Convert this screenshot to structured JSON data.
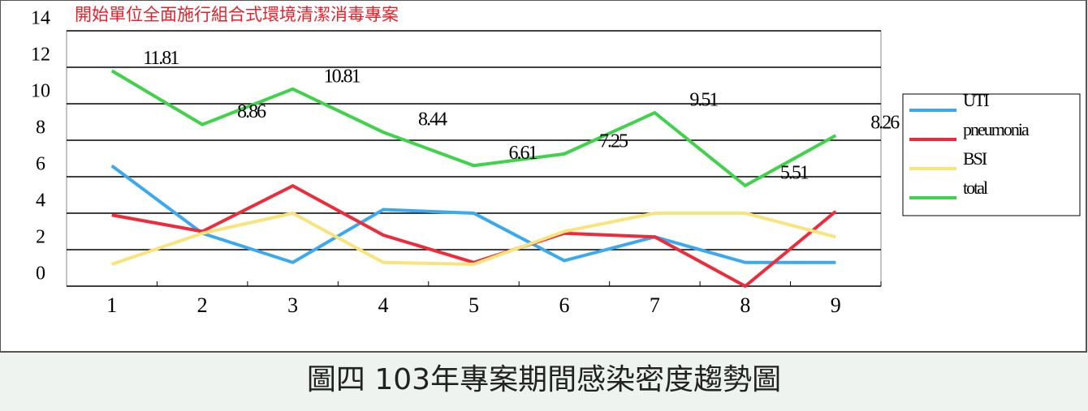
{
  "chart_data": {
    "type": "line",
    "annotation": "開始單位全面施行組合式環境清潔消毒專案",
    "caption": "圖四 103年專案期間感染密度趨勢圖",
    "categories": [
      "1",
      "2",
      "3",
      "4",
      "5",
      "6",
      "7",
      "8",
      "9"
    ],
    "ylim": [
      0,
      14
    ],
    "yticks": [
      0,
      2,
      4,
      6,
      8,
      10,
      12,
      14
    ],
    "grid": true,
    "legend": "right",
    "series": [
      {
        "name": "UTI",
        "color": "#3aa9f0",
        "values": [
          6.6,
          2.9,
          1.3,
          4.2,
          4.0,
          1.4,
          2.7,
          1.3,
          1.3
        ]
      },
      {
        "name": "pneumonia",
        "color": "#ee2b3a",
        "values": [
          3.9,
          3.0,
          5.5,
          2.8,
          1.3,
          2.9,
          2.7,
          0,
          4.1
        ]
      },
      {
        "name": "BSI",
        "color": "#f8e47a",
        "values": [
          1.2,
          2.9,
          4.0,
          1.3,
          1.2,
          3.0,
          4.0,
          4.0,
          2.7
        ]
      },
      {
        "name": "total",
        "color": "#3fd24a",
        "values": [
          11.81,
          8.86,
          10.81,
          8.44,
          6.61,
          7.25,
          9.51,
          5.51,
          8.26
        ],
        "data_labels": true
      }
    ]
  }
}
